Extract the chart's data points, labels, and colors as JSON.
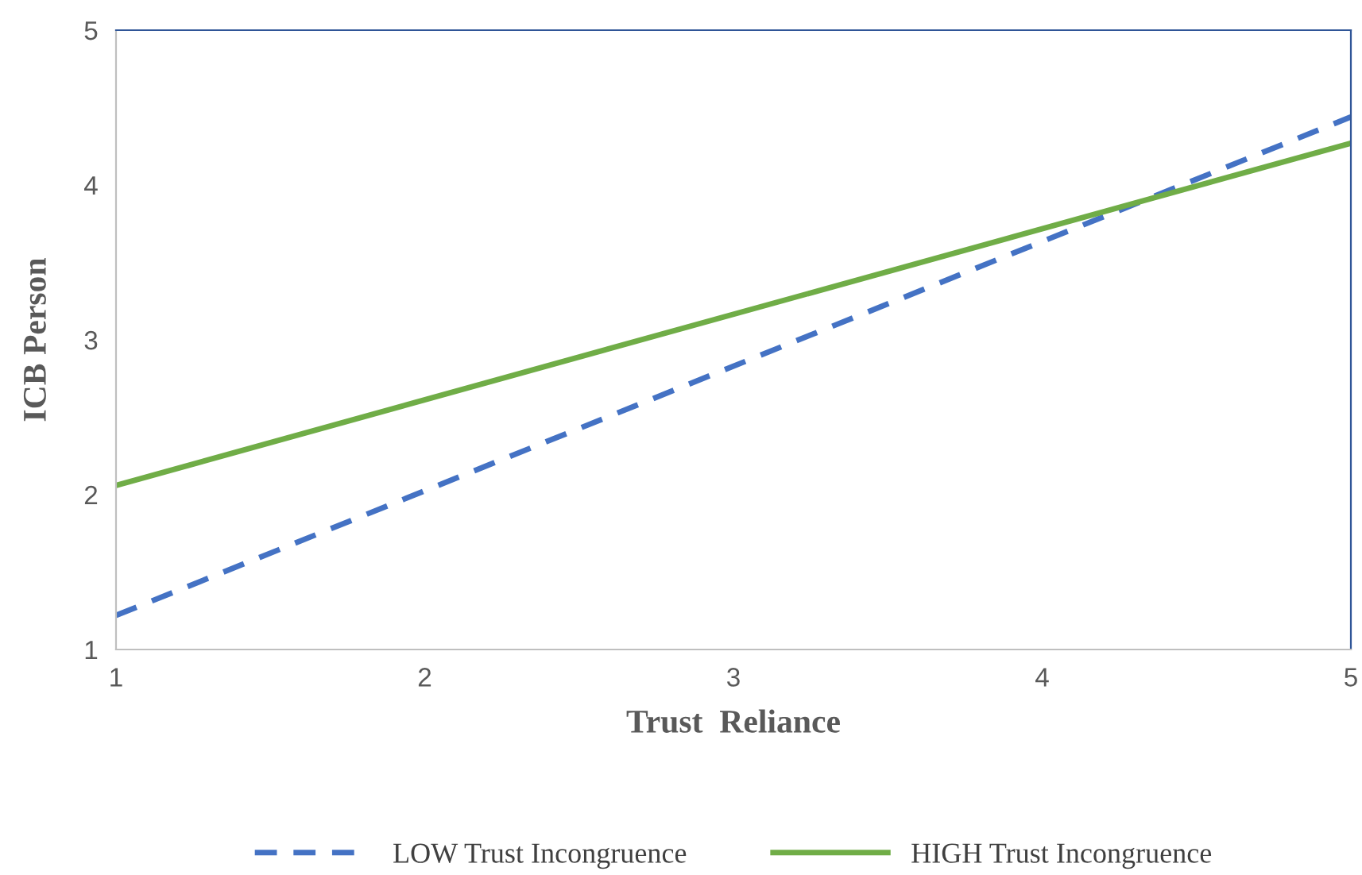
{
  "chart_data": {
    "type": "line",
    "xlabel": "Trust  Reliance",
    "ylabel": "ICB Person",
    "x": [
      1,
      5
    ],
    "series": [
      {
        "name": "LOW Trust Incongruence",
        "color": "#4472c4",
        "line_style": "dashed",
        "values": [
          1.22,
          4.44
        ]
      },
      {
        "name": "HIGH Trust Incongruence",
        "color": "#70ad47",
        "line_style": "solid",
        "values": [
          2.06,
          4.27
        ]
      }
    ],
    "xlim": [
      1,
      5
    ],
    "ylim": [
      1,
      5
    ],
    "xticks": [
      1,
      2,
      3,
      4,
      5
    ],
    "yticks": [
      1,
      2,
      3,
      4,
      5
    ],
    "grid": false,
    "legend": "bottom",
    "marker": "none"
  }
}
